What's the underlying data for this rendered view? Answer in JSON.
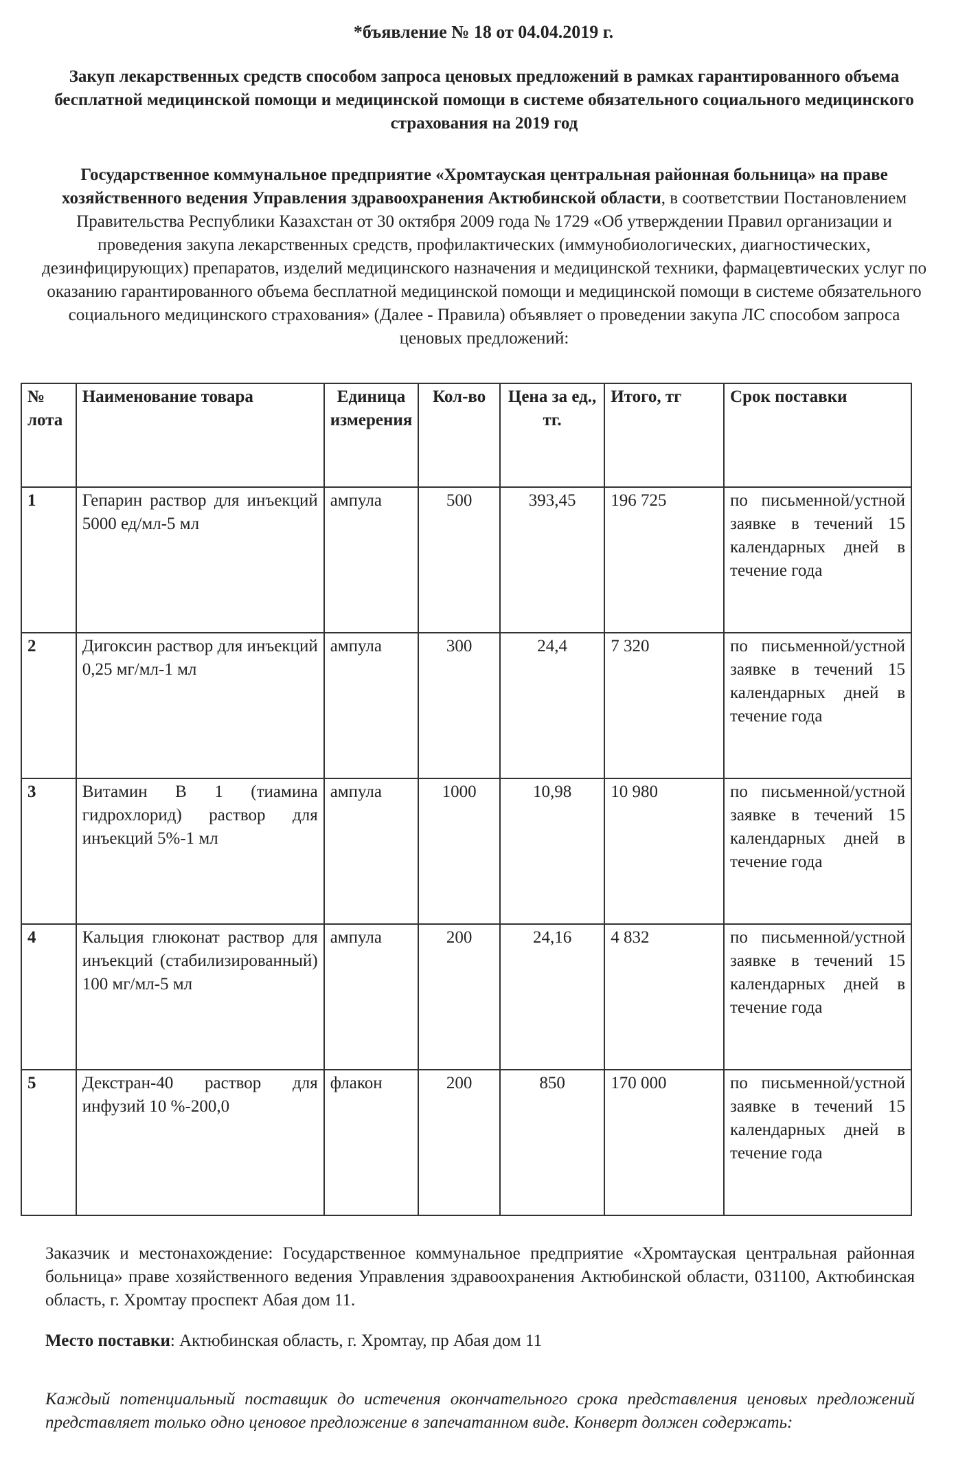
{
  "title": "*бъявление № 18 от 04.04.2019 г.",
  "subject": "Закуп лекарственных средств  способом запроса ценовых предложений в рамках гарантированного объема бесплатной медицинской помощи и медицинской помощи в системе обязательного социального медицинского страхования на 2019 год",
  "intro": {
    "bold": "Государственное коммунальное предприятие «Хромтауская центральная районная больница» на праве хозяйственного ведения Управления здравоохранения Актюбинской области",
    "rest": ", в соответствии Постановлением Правительства Республики Казахстан от 30 октября 2009 года № 1729 «Об утверждении Правил организации и проведения закупа лекарственных средств, профилактических (иммунобиологических, диагностических, дезинфицирующих) препаратов, изделий медицинского назначения и медицинской техники, фармацевтических услуг по оказанию гарантированного объема бесплатной медицинской помощи и медицинской помощи в системе обязательного социального медицинского страхования» (Далее - Правила) объявляет о проведении закупа  ЛС способом запроса ценовых предложений:"
  },
  "table": {
    "headers": [
      "№ лота",
      "Наименование товара",
      "Единица измерения",
      "Кол-во",
      "Цена за ед., тг.",
      "Итого, тг",
      "Срок поставки"
    ],
    "rows": [
      {
        "lot": "1",
        "name": "Гепарин раствор для инъекций 5000 ед/мл-5 мл",
        "unit": "ампула",
        "qty": "500",
        "price": "393,45",
        "total": "196 725",
        "delivery": "по письменной/устной заявке в течений 15 календарных дней в течение года"
      },
      {
        "lot": "2",
        "name": "Дигоксин раствор для инъекций 0,25 мг/мл-1 мл",
        "unit": "ампула",
        "qty": "300",
        "price": "24,4",
        "total": "7 320",
        "delivery": "по письменной/устной заявке в течений 15 календарных дней в течение года"
      },
      {
        "lot": "3",
        "name": "Витамин В 1 (тиамина гидрохлорид) раствор для инъекций 5%-1 мл",
        "unit": "ампула",
        "qty": "1000",
        "price": "10,98",
        "total": "10 980",
        "delivery": "по письменной/устной заявке в течений 15 календарных дней в течение года"
      },
      {
        "lot": "4",
        "name": "Кальция глюконат раствор для инъекций (стабилизированный) 100 мг/мл-5 мл",
        "unit": "ампула",
        "qty": "200",
        "price": "24,16",
        "total": "4 832",
        "delivery": "по письменной/устной заявке в течений 15 календарных дней в течение года"
      },
      {
        "lot": "5",
        "name": "Декстран-40 раствор для инфузий 10 %-200,0",
        "unit": "флакон",
        "qty": "200",
        "price": "850",
        "total": "170 000",
        "delivery": "по письменной/устной заявке в течений 15 календарных дней в течение года"
      }
    ]
  },
  "customer": "Заказчик и местонахождение: Государственное коммунальное предприятие «Хромтауская центральная районная больница» праве хозяйственного ведения Управления здравоохранения Актюбинской области, 031100, Актюбинская область, г. Хромтау проспект Абая дом 11.",
  "place": {
    "label": "Место поставки",
    "value": ": Актюбинская область, г. Хромтау, пр Абая дом 11"
  },
  "note": "Каждый потенциальный поставщик до истечения окончательного срока представления ценовых предложений представляет только одно ценовое предложение в запечатанном виде. Конверт должен содержать:"
}
